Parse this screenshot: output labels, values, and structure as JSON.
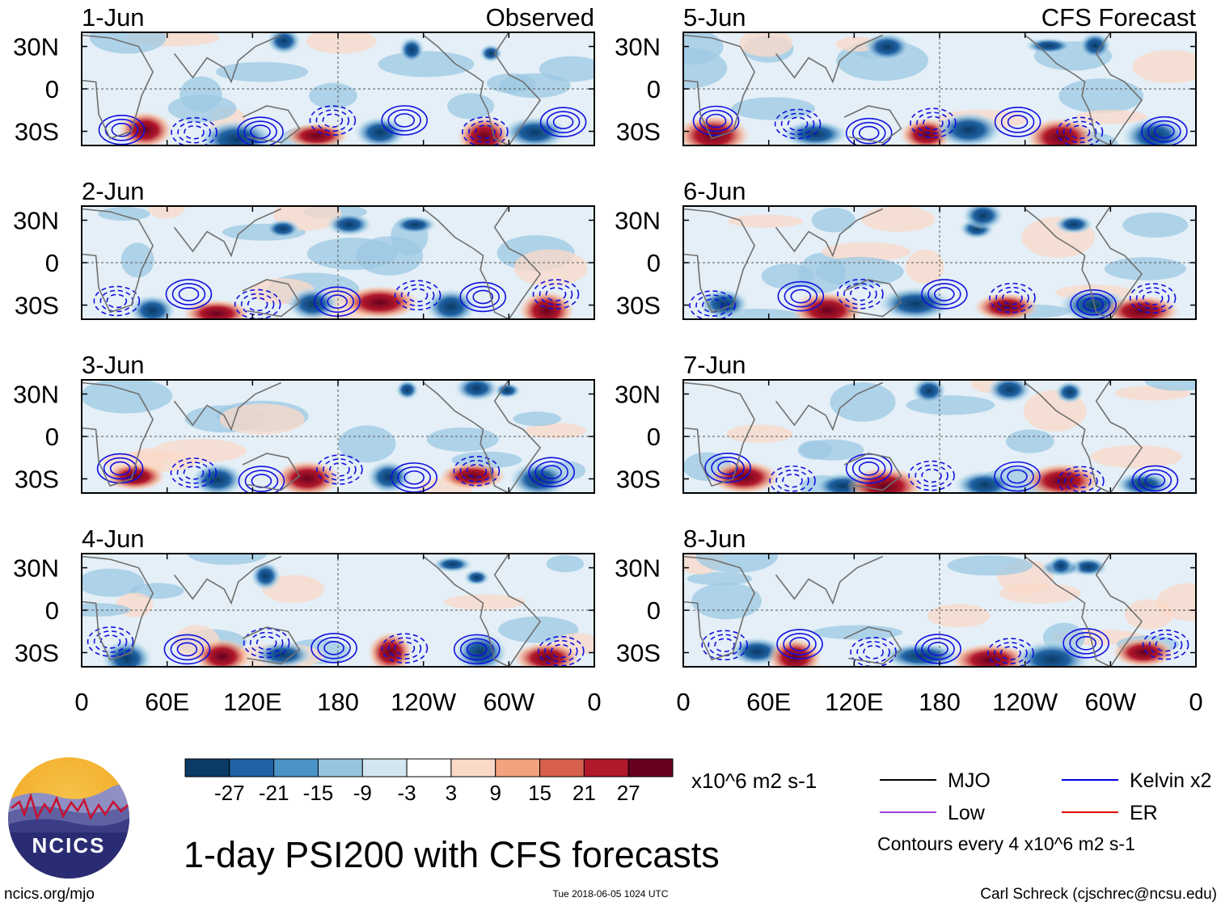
{
  "chart_data": {
    "type": "heatmap",
    "title": "1-day PSI200 with CFS forecasts",
    "variable": "PSI200",
    "units": "x10^6 m2 s-1",
    "observed_label": "Observed",
    "forecast_label": "CFS Forecast",
    "panels": [
      {
        "date": "1-Jun",
        "column": "observed"
      },
      {
        "date": "2-Jun",
        "column": "observed"
      },
      {
        "date": "3-Jun",
        "column": "observed"
      },
      {
        "date": "4-Jun",
        "column": "observed"
      },
      {
        "date": "5-Jun",
        "column": "forecast"
      },
      {
        "date": "6-Jun",
        "column": "forecast"
      },
      {
        "date": "7-Jun",
        "column": "forecast"
      },
      {
        "date": "8-Jun",
        "column": "forecast"
      }
    ],
    "lat_ticks": [
      "30N",
      "0",
      "30S"
    ],
    "lat_values": [
      30,
      0,
      -30
    ],
    "lat_range": [
      -40,
      40
    ],
    "lon_ticks": [
      "0",
      "60E",
      "120E",
      "180",
      "120W",
      "60W",
      "0"
    ],
    "lon_values": [
      0,
      60,
      120,
      180,
      240,
      300,
      360
    ],
    "colorbar": {
      "levels": [
        "-27",
        "-21",
        "-15",
        "-9",
        "-3",
        "3",
        "9",
        "15",
        "21",
        "27"
      ],
      "colors": [
        "#0b3a66",
        "#1f62a3",
        "#4a93c6",
        "#94c4e0",
        "#d3e6f1",
        "#ffffff",
        "#fbd9c8",
        "#f2a27f",
        "#d6604d",
        "#b2182b",
        "#67001f"
      ]
    },
    "legend": [
      {
        "label": "MJO",
        "color": "#000000"
      },
      {
        "label": "Kelvin x2",
        "color": "#0000e0"
      },
      {
        "label": "Low",
        "color": "#a040e0"
      },
      {
        "label": "ER",
        "color": "#e00000"
      }
    ],
    "contour_note": "Contours every 4 x10^6 m2 s-1"
  },
  "logo": {
    "text": "NCICS"
  },
  "footer": {
    "url": "ncics.org/mjo",
    "timestamp": "Tue 2018-06-05 1024 UTC",
    "credit": "Carl Schreck (cjschrec@ncsu.edu)"
  }
}
